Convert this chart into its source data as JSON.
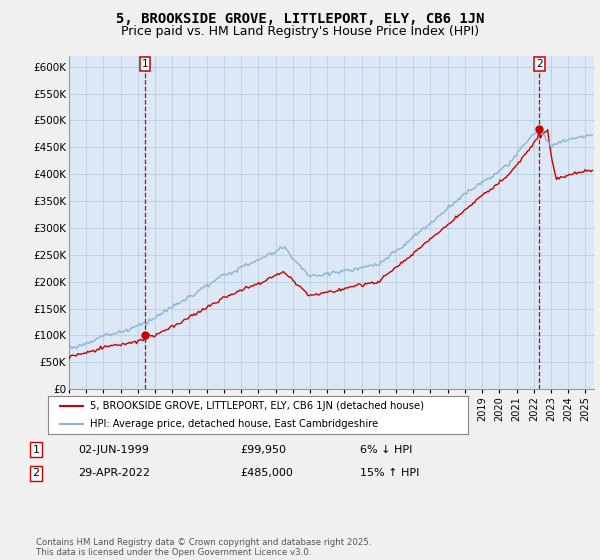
{
  "title": "5, BROOKSIDE GROVE, LITTLEPORT, ELY, CB6 1JN",
  "subtitle": "Price paid vs. HM Land Registry's House Price Index (HPI)",
  "ylim": [
    0,
    620000
  ],
  "yticks": [
    0,
    50000,
    100000,
    150000,
    200000,
    250000,
    300000,
    350000,
    400000,
    450000,
    500000,
    550000,
    600000
  ],
  "ytick_labels": [
    "£0",
    "£50K",
    "£100K",
    "£150K",
    "£200K",
    "£250K",
    "£300K",
    "£350K",
    "£400K",
    "£450K",
    "£500K",
    "£550K",
    "£600K"
  ],
  "hpi_color": "#8ab4d4",
  "price_color": "#cc0000",
  "legend_line1": "5, BROOKSIDE GROVE, LITTLEPORT, ELY, CB6 1JN (detached house)",
  "legend_line2": "HPI: Average price, detached house, East Cambridgeshire",
  "annotation1_label": "1",
  "annotation1_date": "02-JUN-1999",
  "annotation1_price": "£99,950",
  "annotation1_hpi": "6% ↓ HPI",
  "annotation2_label": "2",
  "annotation2_date": "29-APR-2022",
  "annotation2_price": "£485,000",
  "annotation2_hpi": "15% ↑ HPI",
  "footer": "Contains HM Land Registry data © Crown copyright and database right 2025.\nThis data is licensed under the Open Government Licence v3.0.",
  "bg_color": "#f0f0f0",
  "plot_bg_color": "#dce8f5",
  "grid_color": "#b8cfe0",
  "title_fontsize": 10,
  "subtitle_fontsize": 9
}
